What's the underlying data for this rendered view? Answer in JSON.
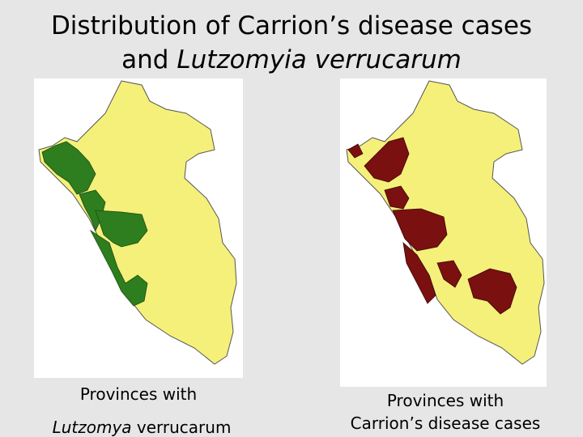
{
  "title": {
    "line1": "Distribution of Carrion’s disease cases",
    "line2_prefix": "and",
    "line2_italic": "Lutzomyia verrucarum"
  },
  "maps": [
    {
      "caption_line1": "Provinces with",
      "caption_line2_italic": "Lutzomya",
      "caption_line2_rest": "verrucarum"
    },
    {
      "caption_line1": "Provinces with",
      "caption_line2": "Carrion’s disease cases"
    }
  ]
}
